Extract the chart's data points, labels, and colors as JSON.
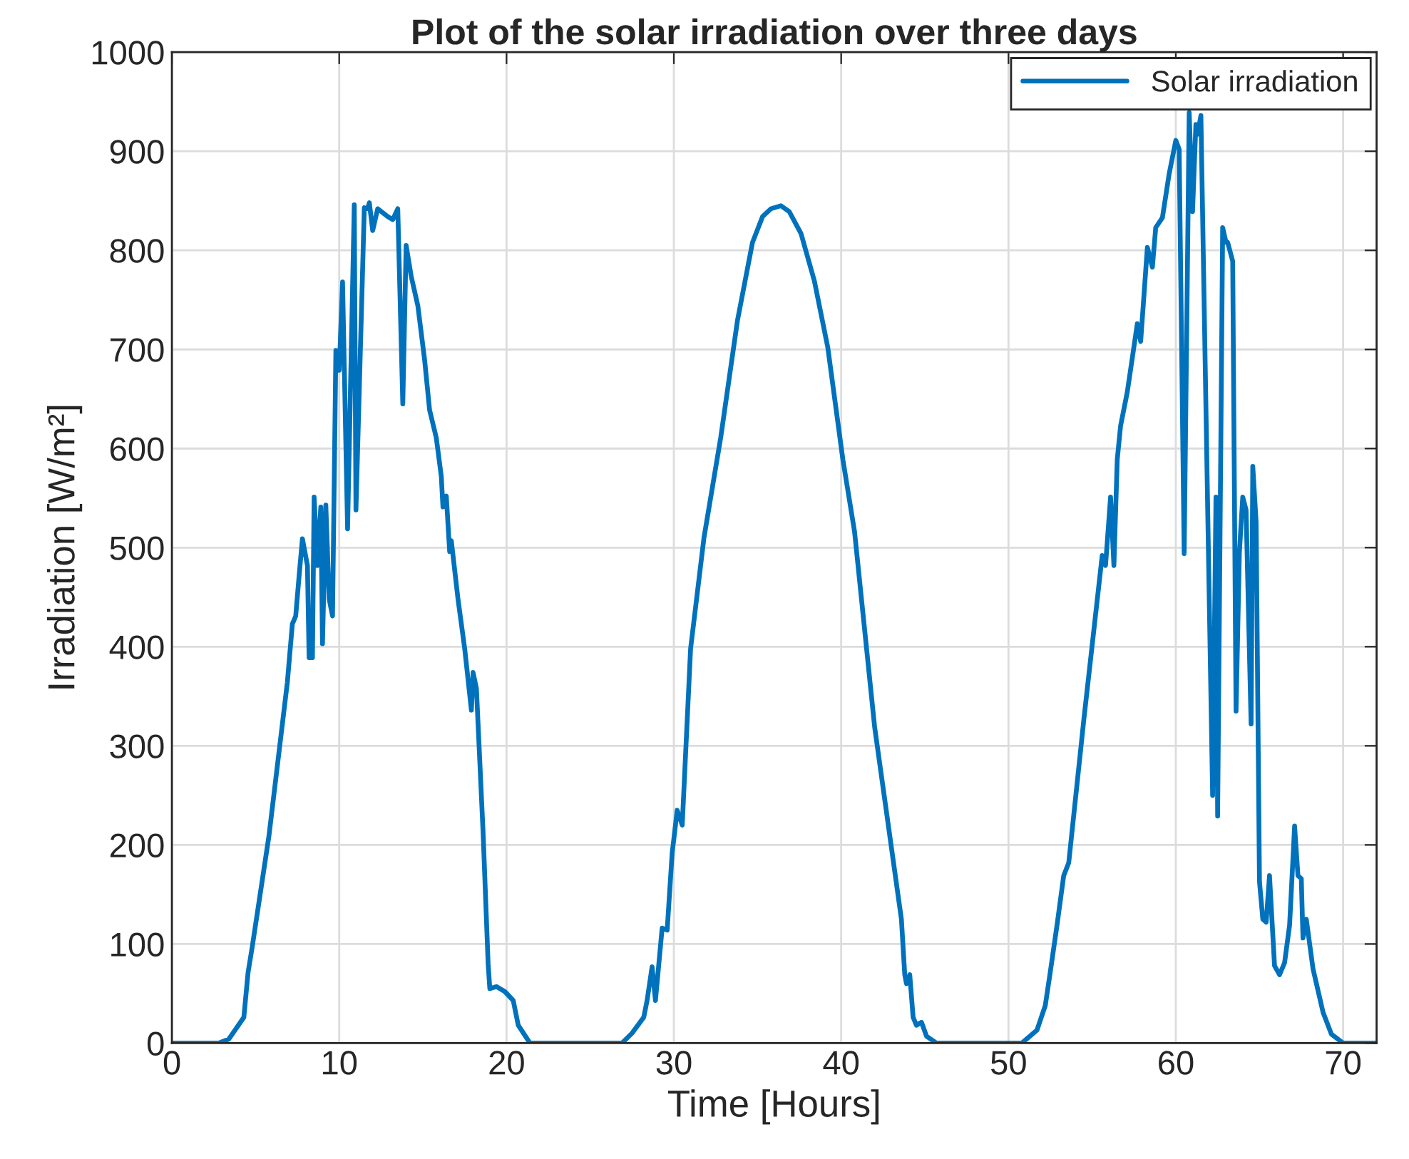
{
  "chart_data": {
    "type": "line",
    "title": "Plot of the solar irradiation over three days",
    "xlabel": "Time [Hours]",
    "ylabel": "Irradiation [W/m²]",
    "xlim": [
      0,
      72
    ],
    "xticks": [
      0,
      10,
      20,
      30,
      40,
      50,
      60,
      70
    ],
    "ylim": [
      0,
      1000
    ],
    "yticks": [
      0,
      100,
      200,
      300,
      400,
      500,
      600,
      700,
      800,
      900,
      1000
    ],
    "grid": true,
    "legend": "top right",
    "line_style": "solid",
    "marker": "none",
    "series": [
      {
        "name": "Solar irradiation",
        "color": "#0072bd",
        "x": [
          0,
          2.8,
          3.4,
          4.3,
          4.55,
          4.8,
          5.8,
          6.9,
          7.2,
          7.4,
          7.6,
          7.8,
          8.1,
          8.2,
          8.4,
          8.5,
          8.7,
          8.9,
          9.0,
          9.2,
          9.4,
          9.6,
          9.8,
          10.0,
          10.2,
          10.5,
          10.9,
          11.0,
          11.5,
          11.7,
          11.8,
          12.0,
          12.3,
          12.9,
          13.2,
          13.5,
          13.8,
          14.0,
          14.3,
          14.7,
          15.1,
          15.4,
          15.8,
          16.1,
          16.2,
          16.4,
          16.6,
          16.7,
          17.1,
          17.5,
          17.9,
          18.0,
          18.2,
          18.6,
          18.9,
          19.0,
          19.4,
          19.9,
          20.4,
          20.7,
          21.4,
          26.9,
          27.5,
          28.2,
          28.4,
          28.7,
          28.9,
          29.3,
          29.6,
          29.9,
          30.0,
          30.2,
          30.5,
          31.0,
          31.8,
          32.8,
          33.8,
          34.7,
          35.3,
          35.8,
          36.4,
          36.9,
          37.6,
          38.4,
          39.2,
          40.1,
          40.8,
          42.0,
          43.6,
          43.8,
          43.9,
          44.1,
          44.3,
          44.5,
          44.8,
          45.1,
          45.7,
          50.8,
          51.7,
          52.2,
          52.5,
          52.9,
          53.3,
          53.6,
          54.5,
          55.6,
          55.8,
          56.1,
          56.3,
          56.5,
          56.7,
          57.1,
          57.7,
          57.9,
          58.3,
          58.6,
          58.8,
          59.2,
          59.6,
          60.0,
          60.2,
          60.5,
          60.8,
          61.0,
          61.2,
          61.3,
          61.5,
          62.2,
          62.4,
          62.5,
          62.8,
          63.0,
          63.1,
          63.4,
          63.6,
          63.8,
          64.0,
          64.2,
          64.5,
          64.6,
          64.8,
          65.0,
          65.2,
          65.4,
          65.6,
          65.9,
          66.2,
          66.5,
          66.8,
          67.1,
          67.3,
          67.5,
          67.6,
          67.8,
          68.2,
          68.8,
          69.3,
          70.0,
          72
        ],
        "values": [
          0,
          0,
          4,
          26,
          71,
          97,
          209,
          364,
          423,
          431,
          471,
          509,
          482,
          389,
          389,
          551,
          482,
          541,
          403,
          543,
          448,
          431,
          699,
          679,
          768,
          519,
          846,
          538,
          843,
          842,
          848,
          820,
          842,
          834,
          831,
          842,
          645,
          805,
          774,
          744,
          690,
          639,
          611,
          572,
          541,
          552,
          496,
          507,
          448,
          398,
          336,
          374,
          358,
          212,
          80,
          55,
          57,
          52,
          43,
          18,
          0,
          0,
          10,
          26,
          43,
          77,
          43,
          116,
          114,
          192,
          206,
          235,
          220,
          398,
          510,
          611,
          729,
          808,
          834,
          842,
          845,
          839,
          817,
          769,
          702,
          589,
          516,
          319,
          125,
          69,
          60,
          69,
          26,
          18,
          21,
          7,
          0,
          0,
          13,
          38,
          72,
          119,
          169,
          182,
          326,
          492,
          482,
          551,
          482,
          589,
          623,
          657,
          726,
          708,
          803,
          783,
          823,
          833,
          877,
          911,
          902,
          494,
          939,
          839,
          927,
          917,
          936,
          250,
          551,
          229,
          823,
          808,
          808,
          789,
          335,
          495,
          551,
          538,
          322,
          582,
          526,
          163,
          125,
          122,
          169,
          78,
          69,
          81,
          119,
          219,
          169,
          166,
          106,
          125,
          75,
          31,
          9,
          0,
          0
        ]
      }
    ]
  }
}
